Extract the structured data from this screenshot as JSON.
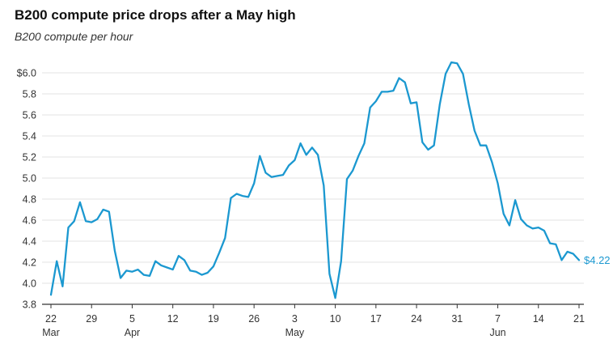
{
  "title": "B200 compute price drops after a May high",
  "subtitle": "B200 compute per hour",
  "end_label": "$4.22",
  "colors": {
    "line": "#1b98d0",
    "grid": "#e3e3e3",
    "axis": "#333333"
  },
  "chart_data": {
    "type": "line",
    "title": "B200 compute price drops after a May high",
    "subtitle": "B200 compute per hour",
    "xlabel": "",
    "ylabel": "",
    "ylim": [
      3.8,
      6.0
    ],
    "grid": "horizontal",
    "y_ticks": [
      "$6.0",
      "5.8",
      "5.6",
      "5.4",
      "5.2",
      "5.0",
      "4.8",
      "4.6",
      "4.4",
      "4.2",
      "4.0",
      "3.8"
    ],
    "x_ticks": [
      {
        "day": 0,
        "label": "22",
        "month": "Mar"
      },
      {
        "day": 7,
        "label": "29",
        "month": ""
      },
      {
        "day": 14,
        "label": "5",
        "month": "Apr"
      },
      {
        "day": 21,
        "label": "12",
        "month": ""
      },
      {
        "day": 28,
        "label": "19",
        "month": ""
      },
      {
        "day": 35,
        "label": "26",
        "month": ""
      },
      {
        "day": 42,
        "label": "3",
        "month": "May"
      },
      {
        "day": 49,
        "label": "10",
        "month": ""
      },
      {
        "day": 56,
        "label": "17",
        "month": ""
      },
      {
        "day": 63,
        "label": "24",
        "month": ""
      },
      {
        "day": 70,
        "label": "31",
        "month": ""
      },
      {
        "day": 77,
        "label": "7",
        "month": "Jun"
      },
      {
        "day": 84,
        "label": "14",
        "month": ""
      },
      {
        "day": 91,
        "label": "21",
        "month": ""
      }
    ],
    "series": [
      {
        "x": [
          0,
          1,
          2,
          3,
          4,
          5,
          6,
          7,
          8,
          9,
          10,
          11,
          12,
          13,
          14,
          15,
          16,
          17,
          18,
          19,
          20,
          21,
          22,
          23,
          24,
          25,
          26,
          27,
          28,
          29,
          30,
          31,
          32,
          33,
          34,
          35,
          36,
          37,
          38,
          39,
          40,
          41,
          42,
          43,
          44,
          45,
          46,
          47,
          48,
          49,
          50,
          51,
          52,
          53,
          54,
          55,
          56,
          57,
          58,
          59,
          60,
          61,
          62,
          63,
          64,
          65,
          66,
          67,
          68,
          69,
          70,
          71,
          72,
          73,
          74,
          75,
          76,
          77,
          78,
          79,
          80,
          81,
          82,
          83,
          84,
          85,
          86,
          87,
          88,
          89,
          90,
          91
        ],
        "y": [
          3.89,
          4.21,
          3.97,
          4.53,
          4.59,
          4.77,
          4.59,
          4.58,
          4.61,
          4.7,
          4.68,
          4.31,
          4.05,
          4.12,
          4.11,
          4.13,
          4.08,
          4.07,
          4.21,
          4.17,
          4.15,
          4.13,
          4.26,
          4.22,
          4.12,
          4.11,
          4.08,
          4.1,
          4.16,
          4.29,
          4.43,
          4.81,
          4.85,
          4.83,
          4.82,
          4.95,
          5.21,
          5.05,
          5.01,
          5.02,
          5.03,
          5.12,
          5.17,
          5.33,
          5.22,
          5.29,
          5.22,
          4.93,
          4.09,
          3.86,
          4.21,
          4.99,
          5.07,
          5.21,
          5.33,
          5.67,
          5.73,
          5.82,
          5.82,
          5.83,
          5.95,
          5.91,
          5.71,
          5.72,
          5.34,
          5.27,
          5.31,
          5.7,
          5.99,
          6.1,
          6.09,
          5.99,
          5.7,
          5.45,
          5.31,
          5.31,
          5.15,
          4.95,
          4.66,
          4.55,
          4.79,
          4.61,
          4.55,
          4.52,
          4.53,
          4.5,
          4.38,
          4.37,
          4.22,
          4.3,
          4.28,
          4.22
        ]
      }
    ]
  }
}
